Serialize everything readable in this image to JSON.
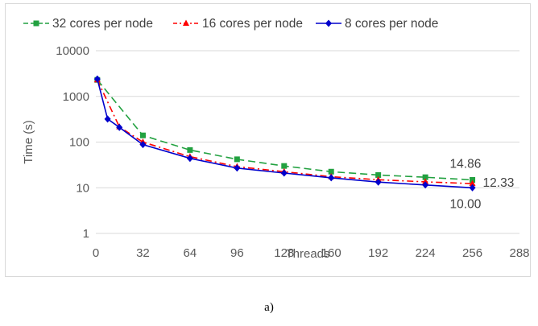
{
  "caption": "a)",
  "chart_data": {
    "type": "line",
    "xlabel": "Threads",
    "ylabel": "Time (s)",
    "x_ticks": [
      0,
      32,
      64,
      96,
      128,
      160,
      192,
      224,
      256,
      288
    ],
    "y_ticks": [
      1,
      10,
      100,
      1000,
      10000
    ],
    "y_tick_labels": [
      "1",
      "10",
      "100",
      "1000",
      "10000"
    ],
    "xlim": [
      0,
      288
    ],
    "ylim": [
      1,
      10000
    ],
    "y_scale": "log",
    "grid": "horizontal",
    "legend_position": "top",
    "series": [
      {
        "name": "32 cores per node",
        "color": "#22a140",
        "line_style": "dashed",
        "marker": "square",
        "x": [
          1,
          32,
          64,
          96,
          128,
          160,
          192,
          224,
          256
        ],
        "y": [
          2300,
          140,
          67,
          42,
          30,
          22.5,
          19,
          17,
          14.86
        ]
      },
      {
        "name": "16 cores per node",
        "color": "#ff0000",
        "line_style": "dashdot",
        "marker": "triangle",
        "x": [
          1,
          16,
          32,
          64,
          96,
          128,
          160,
          192,
          224,
          256
        ],
        "y": [
          2300,
          215,
          100,
          48,
          29,
          22.5,
          17.5,
          15,
          13.5,
          12.33
        ]
      },
      {
        "name": "8 cores per node",
        "color": "#0000cc",
        "line_style": "solid",
        "marker": "diamond",
        "x": [
          1,
          8,
          16,
          32,
          64,
          96,
          128,
          160,
          192,
          224,
          256
        ],
        "y": [
          2400,
          320,
          210,
          88,
          44,
          27,
          21,
          16.5,
          13.3,
          11.5,
          10.0
        ]
      }
    ],
    "data_labels": [
      {
        "series": "32 cores per node",
        "text": "14.86"
      },
      {
        "series": "16 cores per node",
        "text": "12.33"
      },
      {
        "series": "8 cores per node",
        "text": "10.00"
      }
    ]
  }
}
